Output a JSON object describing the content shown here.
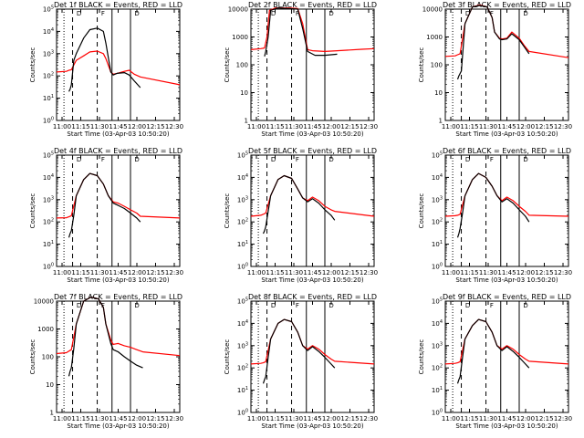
{
  "chart_data": [
    {
      "type": "line",
      "title": "Det 1f BLACK = Events, RED = LLD",
      "xlabel": "Start Time (03-Apr-03 10:50:20)",
      "ylabel": "Counts/sec",
      "yscale": "log",
      "ylim": [
        1,
        100000
      ],
      "xlim": [
        0,
        100
      ],
      "x_tick_labels": [
        "11:00",
        "11:15",
        "11:30",
        "11:45",
        "12:00",
        "12:15",
        "12:30"
      ],
      "y_tick_labels": [
        "10^0",
        "10^1",
        "10^2",
        "10^3",
        "10^4",
        "10^5"
      ],
      "marker_labels": [
        "D",
        "F",
        "D"
      ],
      "series": [
        {
          "name": "RED = LLD",
          "color": "#ff0000",
          "x": [
            0,
            8,
            10,
            12,
            16,
            22,
            27,
            33,
            38,
            40,
            44,
            46,
            49,
            55,
            59,
            63,
            68,
            100
          ],
          "values": [
            150,
            160,
            180,
            190,
            500,
            800,
            1200,
            1300,
            1000,
            600,
            150,
            120,
            130,
            160,
            180,
            120,
            90,
            40
          ]
        },
        {
          "name": "BLACK = Events",
          "color": "#000000",
          "x": [
            10,
            11,
            12,
            14,
            16,
            22,
            27,
            33,
            38,
            40,
            44,
            46,
            49,
            55,
            59,
            63,
            68
          ],
          "values": [
            20,
            25,
            40,
            500,
            1000,
            5000,
            12000,
            14000,
            10000,
            3000,
            150,
            110,
            130,
            140,
            110,
            60,
            30
          ]
        }
      ]
    },
    {
      "type": "line",
      "title": "Det 2f BLACK = Events, RED = LLD",
      "xlabel": "Start Time (03-Apr-03 10:50:20)",
      "ylabel": "Counts/sec",
      "yscale": "log",
      "ylim": [
        1,
        10000
      ],
      "xlim": [
        0,
        100
      ],
      "x_tick_labels": [
        "11:00",
        "11:15",
        "11:30",
        "11:45",
        "12:00",
        "12:15",
        "12:30"
      ],
      "y_tick_labels": [
        "1",
        "10",
        "100",
        "1000",
        "10000"
      ],
      "marker_labels": [
        "D",
        "F",
        "D"
      ],
      "series": [
        {
          "name": "RED = LLD",
          "color": "#ff0000",
          "x": [
            0,
            8,
            11,
            13,
            15,
            20,
            30,
            38,
            42,
            46,
            50,
            60,
            70,
            80,
            90,
            100
          ],
          "values": [
            350,
            380,
            400,
            1000,
            9000,
            11000,
            11000,
            10500,
            3000,
            350,
            320,
            300,
            320,
            340,
            360,
            380
          ]
        },
        {
          "name": "BLACK = Events",
          "color": "#000000",
          "x": [
            11,
            12,
            14,
            16,
            22,
            30,
            38,
            42,
            46,
            52,
            60,
            70
          ],
          "values": [
            200,
            300,
            1000,
            9000,
            11000,
            10500,
            10000,
            2000,
            300,
            220,
            220,
            240
          ]
        }
      ]
    },
    {
      "type": "line",
      "title": "Det 3f BLACK = Events, RED = LLD",
      "xlabel": "Start Time (03-Apr-03 10:50:20)",
      "ylabel": "Counts/sec",
      "yscale": "log",
      "ylim": [
        1,
        10000
      ],
      "xlim": [
        0,
        100
      ],
      "x_tick_labels": [
        "11:00",
        "11:15",
        "11:30",
        "11:45",
        "12:00",
        "12:15",
        "12:30"
      ],
      "y_tick_labels": [
        "1",
        "10",
        "100",
        "1000",
        "10000"
      ],
      "marker_labels": [
        "D",
        "F",
        "D"
      ],
      "series": [
        {
          "name": "RED = LLD",
          "color": "#ff0000",
          "x": [
            0,
            8,
            10,
            12,
            16,
            22,
            28,
            34,
            38,
            40,
            44,
            46,
            50,
            54,
            60,
            64,
            68,
            100
          ],
          "values": [
            200,
            210,
            230,
            250,
            3000,
            12000,
            14000,
            12000,
            5000,
            1500,
            900,
            850,
            900,
            1500,
            900,
            500,
            300,
            180
          ]
        },
        {
          "name": "BLACK = Events",
          "color": "#000000",
          "x": [
            10,
            11,
            13,
            16,
            22,
            28,
            34,
            38,
            40,
            44,
            46,
            50,
            54,
            60,
            64,
            68
          ],
          "values": [
            30,
            40,
            60,
            3000,
            12000,
            13500,
            12000,
            5000,
            1500,
            850,
            800,
            850,
            1300,
            800,
            450,
            250
          ]
        }
      ]
    },
    {
      "type": "line",
      "title": "Det 4f BLACK = Events, RED = LLD",
      "xlabel": "Start Time (03-Apr-03 10:50:20)",
      "ylabel": "Counts/sec",
      "yscale": "log",
      "ylim": [
        1,
        100000
      ],
      "xlim": [
        0,
        100
      ],
      "x_tick_labels": [
        "11:00",
        "11:15",
        "11:30",
        "11:45",
        "12:00",
        "12:15",
        "12:30"
      ],
      "y_tick_labels": [
        "10^0",
        "10^1",
        "10^2",
        "10^3",
        "10^4",
        "10^5"
      ],
      "marker_labels": [
        "D",
        "F",
        "D"
      ],
      "series": [
        {
          "name": "RED = LLD",
          "color": "#ff0000",
          "x": [
            0,
            8,
            10,
            12,
            16,
            22,
            27,
            33,
            38,
            42,
            46,
            50,
            55,
            60,
            65,
            68,
            100
          ],
          "values": [
            150,
            155,
            170,
            190,
            1500,
            8000,
            15000,
            12000,
            5000,
            1500,
            800,
            700,
            500,
            350,
            250,
            180,
            150
          ]
        },
        {
          "name": "BLACK = Events",
          "color": "#000000",
          "x": [
            10,
            11,
            12,
            14,
            16,
            22,
            27,
            33,
            38,
            42,
            46,
            50,
            55,
            60,
            65,
            68
          ],
          "values": [
            20,
            30,
            40,
            200,
            1500,
            8000,
            15000,
            12000,
            5000,
            1500,
            700,
            550,
            400,
            250,
            150,
            100
          ]
        }
      ]
    },
    {
      "type": "line",
      "title": "Det 5f BLACK = Events, RED = LLD",
      "xlabel": "Start Time (03-Apr-03 10:50:20)",
      "ylabel": "Counts/sec",
      "yscale": "log",
      "ylim": [
        1,
        100000
      ],
      "xlim": [
        0,
        100
      ],
      "x_tick_labels": [
        "11:00",
        "11:15",
        "11:30",
        "11:45",
        "12:00",
        "12:15",
        "12:30"
      ],
      "y_tick_labels": [
        "10^0",
        "10^1",
        "10^2",
        "10^3",
        "10^4",
        "10^5"
      ],
      "marker_labels": [
        "D",
        "F",
        "D"
      ],
      "series": [
        {
          "name": "RED = LLD",
          "color": "#ff0000",
          "x": [
            0,
            8,
            10,
            12,
            16,
            22,
            27,
            33,
            38,
            42,
            46,
            50,
            55,
            60,
            65,
            68,
            100
          ],
          "values": [
            180,
            200,
            220,
            250,
            1500,
            8000,
            12000,
            9000,
            3000,
            1200,
            900,
            1300,
            900,
            500,
            350,
            300,
            180
          ]
        },
        {
          "name": "BLACK = Events",
          "color": "#000000",
          "x": [
            10,
            11,
            12,
            14,
            16,
            22,
            27,
            33,
            38,
            42,
            46,
            50,
            55,
            60,
            65,
            68
          ],
          "values": [
            30,
            40,
            60,
            300,
            1500,
            8000,
            12000,
            9000,
            3000,
            1200,
            800,
            1100,
            700,
            350,
            200,
            120
          ]
        }
      ]
    },
    {
      "type": "line",
      "title": "Det 6f BLACK = Events, RED = LLD",
      "xlabel": "Start Time (03-Apr-03 10:50:20)",
      "ylabel": "Counts/sec",
      "yscale": "log",
      "ylim": [
        1,
        100000
      ],
      "xlim": [
        0,
        100
      ],
      "x_tick_labels": [
        "11:00",
        "11:15",
        "11:30",
        "11:45",
        "12:00",
        "12:15",
        "12:30"
      ],
      "y_tick_labels": [
        "10^0",
        "10^1",
        "10^2",
        "10^3",
        "10^4",
        "10^5"
      ],
      "marker_labels": [
        "D",
        "F",
        "D"
      ],
      "series": [
        {
          "name": "RED = LLD",
          "color": "#ff0000",
          "x": [
            0,
            8,
            10,
            12,
            16,
            22,
            27,
            33,
            38,
            42,
            46,
            50,
            55,
            60,
            65,
            68,
            100
          ],
          "values": [
            180,
            190,
            200,
            220,
            1500,
            8000,
            15000,
            10000,
            4000,
            1500,
            900,
            1300,
            900,
            500,
            300,
            200,
            180
          ]
        },
        {
          "name": "BLACK = Events",
          "color": "#000000",
          "x": [
            10,
            11,
            12,
            14,
            16,
            22,
            27,
            33,
            38,
            42,
            46,
            50,
            55,
            60,
            65,
            68
          ],
          "values": [
            20,
            30,
            50,
            250,
            1500,
            8000,
            15000,
            10000,
            4000,
            1500,
            800,
            1100,
            700,
            350,
            180,
            100
          ]
        }
      ]
    },
    {
      "type": "line",
      "title": "Det 7f BLACK = Events, RED = LLD",
      "xlabel": "Start Time (03-Apr-03 10:50:20)",
      "ylabel": "Counts/sec",
      "yscale": "log",
      "ylim": [
        1,
        10000
      ],
      "xlim": [
        0,
        100
      ],
      "x_tick_labels": [
        "11:00",
        "11:15",
        "11:30",
        "11:45",
        "12:00",
        "12:15",
        "12:30"
      ],
      "y_tick_labels": [
        "1",
        "10",
        "100",
        "1000",
        "10000"
      ],
      "marker_labels": [
        "D",
        "F",
        "D"
      ],
      "series": [
        {
          "name": "RED = LLD",
          "color": "#ff0000",
          "x": [
            0,
            8,
            10,
            12,
            16,
            22,
            28,
            34,
            38,
            40,
            44,
            46,
            50,
            55,
            60,
            65,
            70,
            100
          ],
          "values": [
            130,
            140,
            160,
            180,
            1500,
            10000,
            14000,
            12000,
            6000,
            1500,
            400,
            280,
            300,
            250,
            220,
            180,
            150,
            110
          ]
        },
        {
          "name": "BLACK = Events",
          "color": "#000000",
          "x": [
            10,
            11,
            12,
            14,
            16,
            22,
            28,
            34,
            38,
            40,
            44,
            46,
            50,
            55,
            60,
            65,
            70
          ],
          "values": [
            20,
            30,
            40,
            200,
            1500,
            10000,
            14000,
            12000,
            6000,
            1500,
            300,
            180,
            150,
            100,
            70,
            50,
            40
          ]
        }
      ]
    },
    {
      "type": "line",
      "title": "Det 8f BLACK = Events, RED = LLD",
      "xlabel": "Start Time (03-Apr-03 10:50:20)",
      "ylabel": "Counts/sec",
      "yscale": "log",
      "ylim": [
        1,
        100000
      ],
      "xlim": [
        0,
        100
      ],
      "x_tick_labels": [
        "11:00",
        "11:15",
        "11:30",
        "11:45",
        "12:00",
        "12:15",
        "12:30"
      ],
      "y_tick_labels": [
        "10^0",
        "10^1",
        "10^2",
        "10^3",
        "10^4",
        "10^5"
      ],
      "marker_labels": [
        "D",
        "F",
        "D"
      ],
      "series": [
        {
          "name": "RED = LLD",
          "color": "#ff0000",
          "x": [
            0,
            8,
            10,
            12,
            16,
            22,
            27,
            33,
            38,
            42,
            46,
            50,
            55,
            60,
            65,
            68,
            100
          ],
          "values": [
            150,
            160,
            170,
            190,
            2000,
            10000,
            15000,
            12000,
            4000,
            1000,
            700,
            1000,
            700,
            400,
            250,
            200,
            150
          ]
        },
        {
          "name": "BLACK = Events",
          "color": "#000000",
          "x": [
            10,
            11,
            12,
            14,
            16,
            22,
            27,
            33,
            38,
            42,
            46,
            50,
            55,
            60,
            65,
            68
          ],
          "values": [
            20,
            30,
            40,
            300,
            2000,
            10000,
            15000,
            12000,
            4000,
            1000,
            600,
            900,
            550,
            300,
            150,
            100
          ]
        }
      ]
    },
    {
      "type": "line",
      "title": "Det 9f BLACK = Events, RED = LLD",
      "xlabel": "Start Time (03-Apr-03 10:50:20)",
      "ylabel": "Counts/sec",
      "yscale": "log",
      "ylim": [
        1,
        100000
      ],
      "xlim": [
        0,
        100
      ],
      "x_tick_labels": [
        "11:00",
        "11:15",
        "11:30",
        "11:45",
        "12:00",
        "12:15",
        "12:30"
      ],
      "y_tick_labels": [
        "10^0",
        "10^1",
        "10^2",
        "10^3",
        "10^4",
        "10^5"
      ],
      "marker_labels": [
        "D",
        "F",
        "D"
      ],
      "series": [
        {
          "name": "RED = LLD",
          "color": "#ff0000",
          "x": [
            0,
            8,
            10,
            12,
            16,
            22,
            27,
            33,
            38,
            42,
            46,
            50,
            55,
            60,
            65,
            68,
            100
          ],
          "values": [
            150,
            160,
            170,
            190,
            2000,
            8000,
            15000,
            12000,
            4000,
            1000,
            700,
            1000,
            700,
            400,
            250,
            200,
            150
          ]
        },
        {
          "name": "BLACK = Events",
          "color": "#000000",
          "x": [
            10,
            11,
            12,
            14,
            16,
            22,
            27,
            33,
            38,
            42,
            46,
            50,
            55,
            60,
            65,
            68
          ],
          "values": [
            20,
            30,
            40,
            300,
            2000,
            8000,
            15000,
            12000,
            4000,
            1000,
            600,
            900,
            550,
            300,
            150,
            100
          ]
        }
      ]
    }
  ]
}
